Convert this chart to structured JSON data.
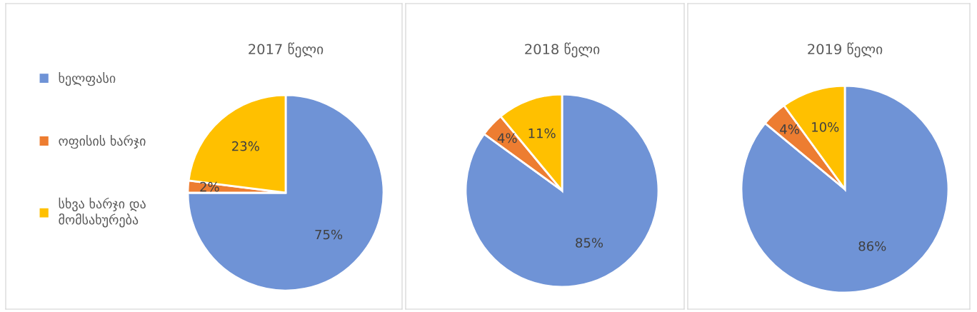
{
  "chart_data": [
    {
      "type": "pie",
      "title": "2017 წელი",
      "categories": [
        "ხელფასი",
        "ოფისის ხარჯი",
        "სხვა ხარჯი და\nმომსახურება"
      ],
      "values": [
        75,
        2,
        23
      ],
      "value_labels": [
        "75%",
        "2%",
        "23%"
      ],
      "colors": [
        "#6f93d6",
        "#ed7d31",
        "#ffc000"
      ],
      "legend": "left"
    },
    {
      "type": "pie",
      "title": "2018 წელი",
      "categories": [
        null,
        null,
        null
      ],
      "values": [
        85,
        4,
        11
      ],
      "value_labels": [
        "85%",
        "4%",
        "11%"
      ],
      "colors": [
        "#6f93d6",
        "#ed7d31",
        "#ffc000"
      ]
    },
    {
      "type": "pie",
      "title": "2019 წელი",
      "categories": [
        null,
        null,
        null
      ],
      "values": [
        86,
        4,
        10
      ],
      "value_labels": [
        "86%",
        "4%",
        "10%"
      ],
      "colors": [
        "#6f93d6",
        "#ed7d31",
        "#ffc000"
      ]
    }
  ]
}
